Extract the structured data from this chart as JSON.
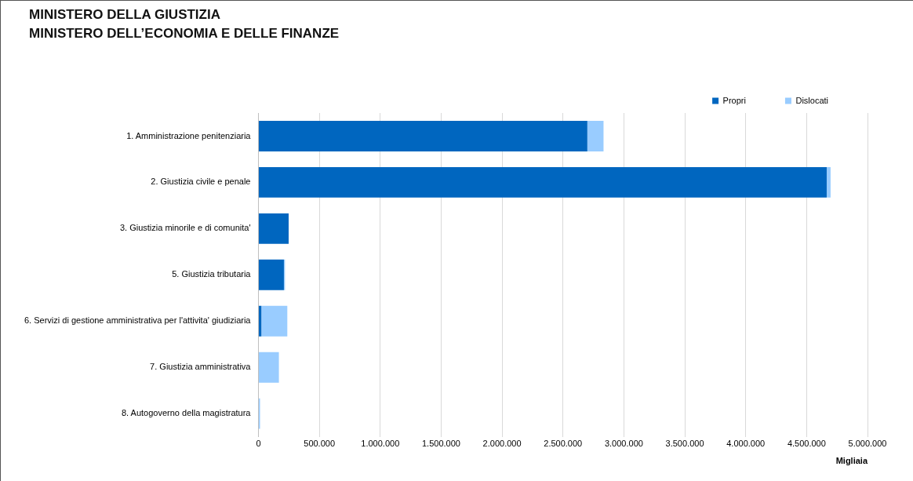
{
  "chart_data": {
    "type": "bar",
    "orientation": "horizontal",
    "stacked": true,
    "title": "MINISTERO DELLA GIUSTIZIA\nMINISTERO DELL’ECONOMIA E DELLE FINANZE",
    "xlabel": "Migliaia",
    "categories": [
      "1. Amministrazione penitenziaria",
      "2. Giustizia civile e penale",
      "3. Giustizia minorile e di comunita'",
      "5. Giustizia tributaria",
      "6. Servizi di gestione amministrativa per l'attivita' giudiziaria",
      "7. Giustizia amministrativa",
      "8. Autogoverno della magistratura"
    ],
    "series": [
      {
        "name": "Propri",
        "color": "#0066bf",
        "values": [
          2700000,
          4665000,
          248000,
          209000,
          24000,
          0,
          0
        ]
      },
      {
        "name": "Dislocati",
        "color": "#99ccff",
        "values": [
          133000,
          32000,
          null,
          9000,
          213000,
          168000,
          13000
        ]
      }
    ],
    "xlim": [
      0,
      5000000
    ],
    "xticks": [
      0,
      {
        "value": 500000,
        "label": "500.000"
      },
      {
        "value": 1000000,
        "label": "1.000.000"
      },
      {
        "value": 1500000,
        "label": "1.500.000"
      },
      {
        "value": 2000000,
        "label": "2.000.000"
      },
      {
        "value": 2500000,
        "label": "2.500.000"
      },
      {
        "value": 3000000,
        "label": "3.000.000"
      },
      {
        "value": 3500000,
        "label": "3.500.000"
      },
      {
        "value": 4000000,
        "label": "4.000.000"
      },
      {
        "value": 4500000,
        "label": "4.500.000"
      },
      {
        "value": 5000000,
        "label": "5.000.000"
      }
    ],
    "grid": "x",
    "legend": "top right"
  }
}
